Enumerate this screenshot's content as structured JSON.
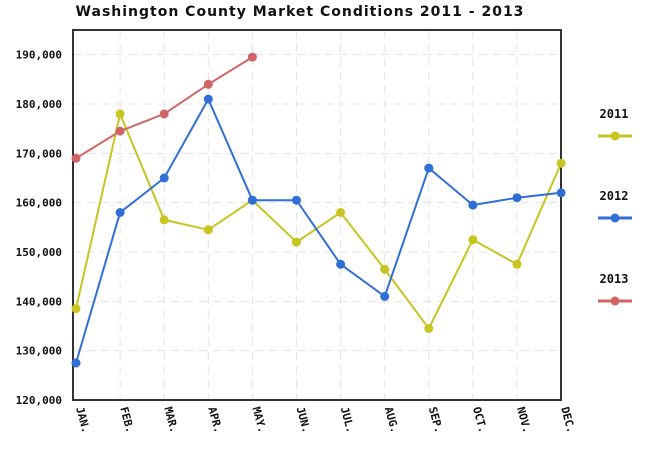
{
  "chart_data": {
    "type": "line",
    "title": "Washington County Market Conditions 2011 - 2013",
    "categories": [
      "JAN.",
      "FEB.",
      "MAR.",
      "APR.",
      "MAY.",
      "JUN.",
      "JUL.",
      "AUG.",
      "SEP.",
      "OCT.",
      "NOV.",
      "DEC."
    ],
    "ylim": [
      120000,
      195000
    ],
    "yticks": [
      120000,
      130000,
      140000,
      150000,
      160000,
      170000,
      180000,
      190000
    ],
    "ytick_labels": [
      "120,000",
      "130,000",
      "140,000",
      "150,000",
      "160,000",
      "170,000",
      "180,000",
      "190,000"
    ],
    "grid": true,
    "legend_position": "right",
    "series": [
      {
        "name": "2011",
        "color": "#c8c420",
        "values": [
          138500,
          178000,
          156500,
          154500,
          160500,
          152000,
          158000,
          146500,
          134500,
          152500,
          147500,
          168000
        ]
      },
      {
        "name": "2012",
        "color": "#2f6fd6",
        "values": [
          127500,
          158000,
          165000,
          181000,
          160500,
          160500,
          147500,
          141000,
          167000,
          159500,
          161000,
          162000
        ]
      },
      {
        "name": "2013",
        "color": "#d06464",
        "values": [
          169000,
          174500,
          178000,
          184000,
          189500,
          null,
          null,
          null,
          null,
          null,
          null,
          null
        ]
      }
    ]
  }
}
